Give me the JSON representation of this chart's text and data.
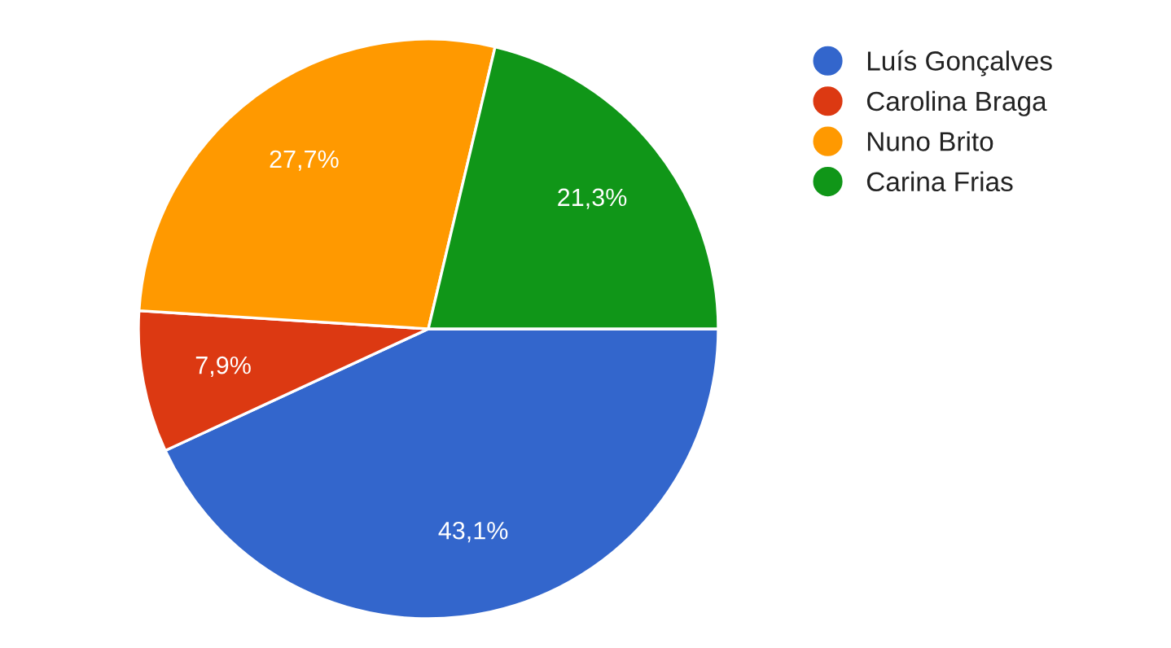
{
  "chart_data": {
    "type": "pie",
    "categories": [
      "Luís Gonçalves",
      "Carolina Braga",
      "Nuno Brito",
      "Carina Frias"
    ],
    "values": [
      43.1,
      7.9,
      27.7,
      21.3
    ],
    "colors": [
      "#3366cc",
      "#dc3912",
      "#ff9900",
      "#109618"
    ],
    "value_labels": [
      "43,1%",
      "7,9%",
      "27,7%",
      "21,3%"
    ],
    "legend": "top right"
  }
}
